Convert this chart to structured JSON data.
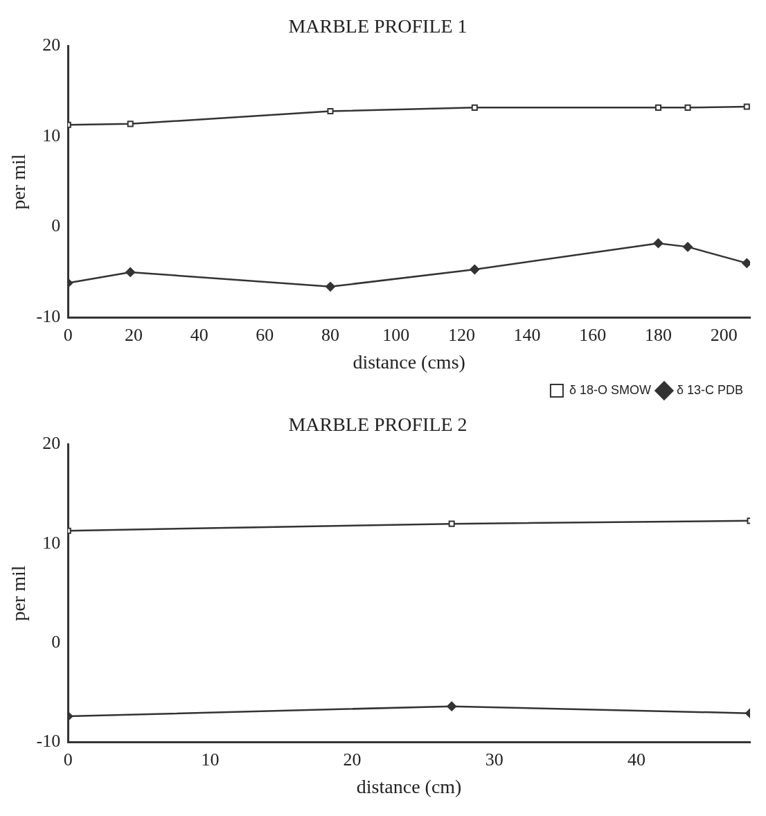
{
  "chart_data": [
    {
      "type": "line",
      "title": "MARBLE PROFILE 1",
      "xlabel": "distance (cms)",
      "ylabel": "per mil",
      "xlim": [
        0,
        208
      ],
      "xticks": [
        0,
        20,
        40,
        60,
        80,
        100,
        120,
        140,
        160,
        180,
        200
      ],
      "ylim": [
        -10,
        20
      ],
      "yticks": [
        -10,
        0,
        10,
        20
      ],
      "grid": false,
      "legend": "bottom right",
      "line_style": "solid",
      "series": [
        {
          "name": "δ 18-O SMOW",
          "color": "#333333",
          "marker": "square",
          "x": [
            0,
            19,
            80,
            124,
            180,
            189,
            207
          ],
          "values": [
            11.3,
            11.4,
            12.8,
            13.2,
            13.2,
            13.2,
            13.3
          ]
        },
        {
          "name": "δ 13-C PDB",
          "color": "#333333",
          "marker": "diamond",
          "x": [
            0,
            19,
            80,
            124,
            180,
            189,
            207
          ],
          "values": [
            -6.2,
            -5.0,
            -6.6,
            -4.7,
            -1.8,
            -2.2,
            -4.0
          ]
        }
      ]
    },
    {
      "type": "line",
      "title": "MARBLE PROFILE 2",
      "xlabel": "distance (cm)",
      "ylabel": "per mil",
      "xlim": [
        0,
        48
      ],
      "xticks": [
        0,
        10,
        20,
        30,
        40
      ],
      "ylim": [
        -10,
        20
      ],
      "yticks": [
        -10,
        0,
        10,
        20
      ],
      "grid": false,
      "legend": false,
      "line_style": "solid",
      "series": [
        {
          "color": "#333333",
          "marker": "square",
          "x": [
            0,
            27,
            48
          ],
          "values": [
            11.3,
            12.0,
            12.3
          ]
        },
        {
          "color": "#333333",
          "marker": "diamond",
          "x": [
            0,
            27,
            48
          ],
          "values": [
            -7.4,
            -6.4,
            -7.1
          ]
        }
      ]
    }
  ]
}
